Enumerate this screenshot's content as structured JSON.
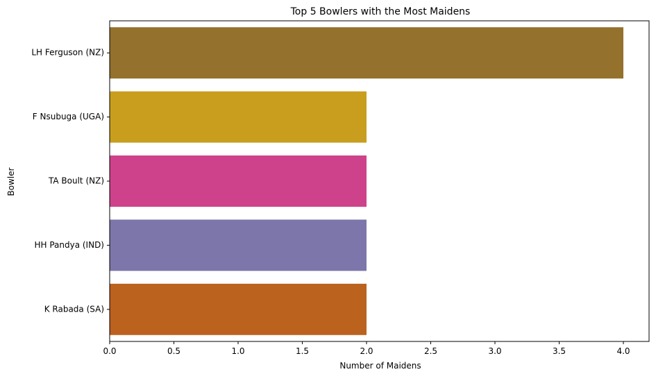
{
  "chart_data": {
    "type": "bar",
    "orientation": "horizontal",
    "title": "Top 5 Bowlers with the Most Maidens",
    "xlabel": "Number of Maidens",
    "ylabel": "Bowler",
    "categories": [
      "LH Ferguson (NZ)",
      "F Nsubuga (UGA)",
      "TA Boult (NZ)",
      "HH Pandya (IND)",
      "K Rabada (SA)"
    ],
    "values": [
      4,
      2,
      2,
      2,
      2
    ],
    "colors": [
      "#94712d",
      "#c99e1e",
      "#ce428c",
      "#7c76aa",
      "#bb621f"
    ],
    "xlim": [
      0,
      4.2
    ],
    "xticks": [
      "0.0",
      "0.5",
      "1.0",
      "1.5",
      "2.0",
      "2.5",
      "3.0",
      "3.5",
      "4.0"
    ],
    "grid": false,
    "legend": "none"
  }
}
